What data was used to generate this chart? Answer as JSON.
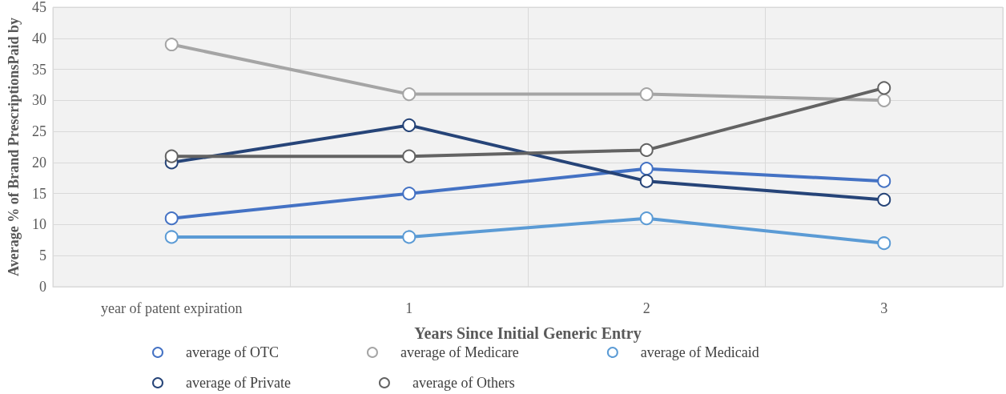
{
  "chart_data": {
    "type": "line",
    "xlabel": "Years Since Initial Generic Entry",
    "ylabel": "Average % of Brand PrescriptionsPaid by",
    "categories": [
      "year of patent expiration",
      "1",
      "2",
      "3"
    ],
    "series": [
      {
        "name": "average of OTC",
        "color": "#4472c4",
        "values": [
          11,
          15,
          19,
          17
        ]
      },
      {
        "name": "average of Medicare",
        "color": "#a5a5a5",
        "values": [
          39,
          31,
          31,
          30
        ]
      },
      {
        "name": "average of Medicaid",
        "color": "#5b9bd5",
        "values": [
          8,
          8,
          11,
          7
        ]
      },
      {
        "name": "average of Private",
        "color": "#264478",
        "values": [
          20,
          26,
          17,
          14
        ]
      },
      {
        "name": "average of Others",
        "color": "#636363",
        "values": [
          21,
          21,
          22,
          32
        ]
      }
    ],
    "ylim": [
      0,
      45
    ],
    "yticks": [
      0,
      5,
      10,
      15,
      20,
      25,
      30,
      35,
      40,
      45
    ],
    "grid": true,
    "legend": "bottom",
    "marker": "circle",
    "line_style": "solid"
  }
}
